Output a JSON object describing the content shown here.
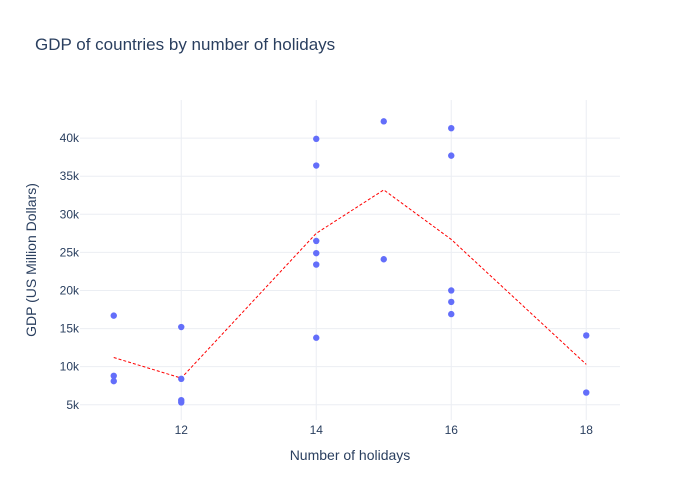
{
  "chart_data": {
    "type": "scatter",
    "title": "GDP of countries by number of holidays",
    "xlabel": "Number of holidays",
    "ylabel": "GDP (US Million Dollars)",
    "xlim": [
      10.5,
      18.5
    ],
    "ylim": [
      3000,
      45000
    ],
    "x_ticks": [
      12,
      14,
      16,
      18
    ],
    "x_tick_labels": [
      "12",
      "14",
      "16",
      "18"
    ],
    "y_ticks": [
      5000,
      10000,
      15000,
      20000,
      25000,
      30000,
      35000,
      40000
    ],
    "y_tick_labels": [
      "5k",
      "10k",
      "15k",
      "20k",
      "25k",
      "30k",
      "35k",
      "40k"
    ],
    "grid": true,
    "colors": {
      "points": "#636efa",
      "trend": "#ff0000",
      "grid": "#ebeef3",
      "text": "#2a3f5f"
    },
    "series": [
      {
        "type": "scatter",
        "points": [
          {
            "x": 11,
            "y": 16700
          },
          {
            "x": 11,
            "y": 8800
          },
          {
            "x": 11,
            "y": 8100
          },
          {
            "x": 12,
            "y": 15200
          },
          {
            "x": 12,
            "y": 8400
          },
          {
            "x": 12,
            "y": 5600
          },
          {
            "x": 12,
            "y": 5300
          },
          {
            "x": 14,
            "y": 39900
          },
          {
            "x": 14,
            "y": 36400
          },
          {
            "x": 14,
            "y": 26500
          },
          {
            "x": 14,
            "y": 24900
          },
          {
            "x": 14,
            "y": 23400
          },
          {
            "x": 14,
            "y": 13800
          },
          {
            "x": 15,
            "y": 42200
          },
          {
            "x": 15,
            "y": 24100
          },
          {
            "x": 16,
            "y": 41300
          },
          {
            "x": 16,
            "y": 37700
          },
          {
            "x": 16,
            "y": 20000
          },
          {
            "x": 16,
            "y": 18500
          },
          {
            "x": 16,
            "y": 16900
          },
          {
            "x": 18,
            "y": 14100
          },
          {
            "x": 18,
            "y": 6600
          }
        ]
      },
      {
        "type": "line",
        "style": "dashed",
        "points": [
          {
            "x": 11,
            "y": 11200
          },
          {
            "x": 12,
            "y": 8500
          },
          {
            "x": 14,
            "y": 27500
          },
          {
            "x": 15,
            "y": 33200
          },
          {
            "x": 16,
            "y": 26700
          },
          {
            "x": 18,
            "y": 10300
          }
        ]
      }
    ]
  }
}
